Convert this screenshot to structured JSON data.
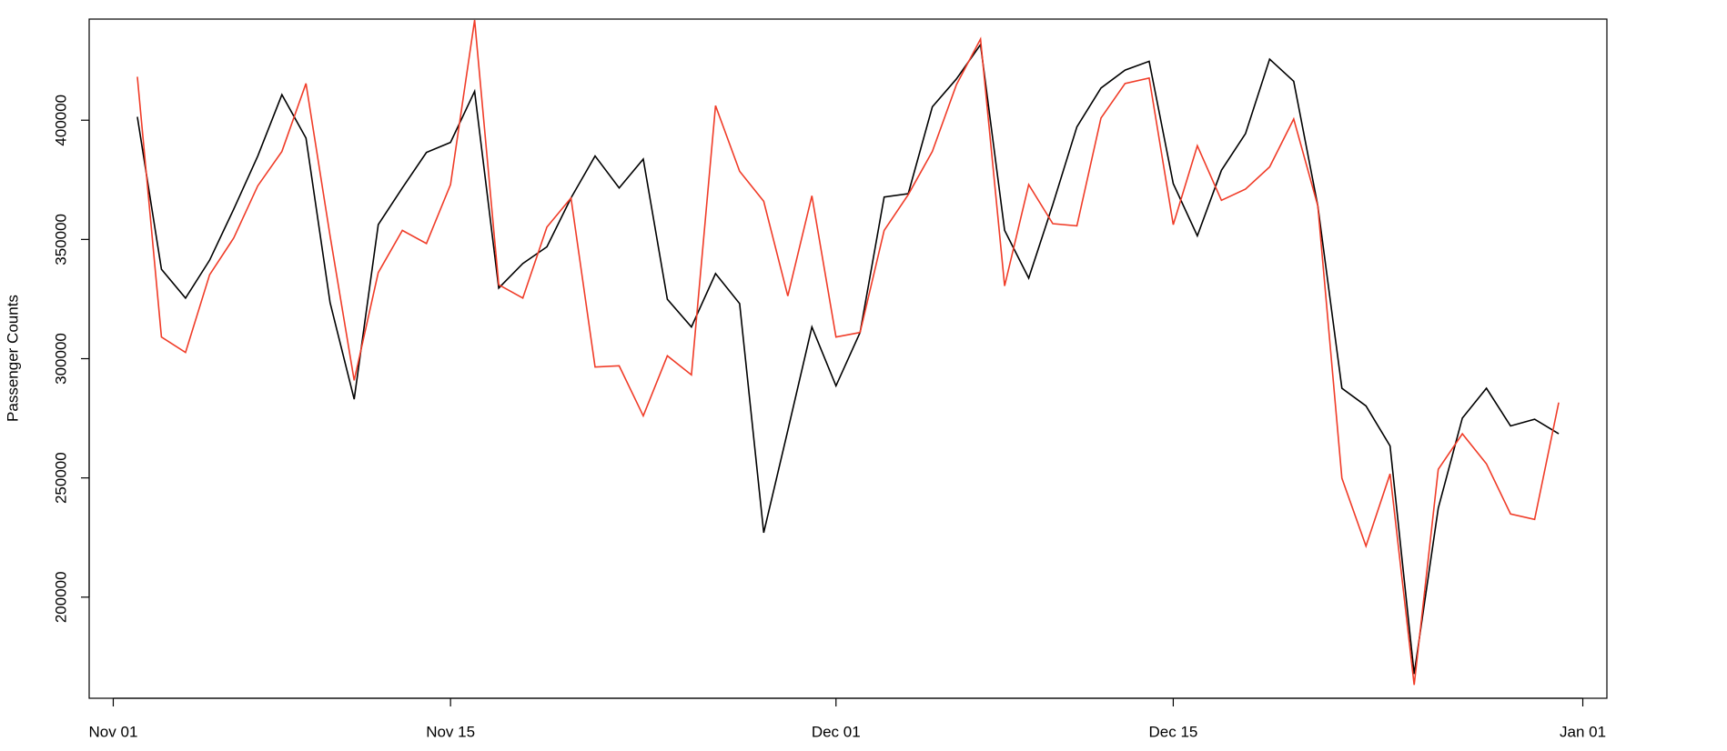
{
  "chart_data": {
    "type": "line",
    "y_label": "Passenger Counts",
    "x": [
      "Nov 02",
      "Nov 03",
      "Nov 04",
      "Nov 05",
      "Nov 06",
      "Nov 07",
      "Nov 08",
      "Nov 09",
      "Nov 10",
      "Nov 11",
      "Nov 12",
      "Nov 13",
      "Nov 14",
      "Nov 15",
      "Nov 16",
      "Nov 17",
      "Nov 18",
      "Nov 19",
      "Nov 20",
      "Nov 21",
      "Nov 22",
      "Nov 23",
      "Nov 24",
      "Nov 25",
      "Nov 26",
      "Nov 27",
      "Nov 28",
      "Nov 29",
      "Nov 30",
      "Dec 01",
      "Dec 02",
      "Dec 03",
      "Dec 04",
      "Dec 05",
      "Dec 06",
      "Dec 07",
      "Dec 08",
      "Dec 09",
      "Dec 10",
      "Dec 11",
      "Dec 12",
      "Dec 13",
      "Dec 14",
      "Dec 15",
      "Dec 16",
      "Dec 17",
      "Dec 18",
      "Dec 19",
      "Dec 20",
      "Dec 21",
      "Dec 22",
      "Dec 23",
      "Dec 24",
      "Dec 25",
      "Dec 26",
      "Dec 27",
      "Dec 28",
      "Dec 29",
      "Dec 30",
      "Dec 31"
    ],
    "series": [
      {
        "color": "#000000",
        "values": [
          401400,
          337500,
          325400,
          341300,
          362700,
          385000,
          410700,
          392500,
          323500,
          283000,
          356200,
          371600,
          386500,
          390700,
          412100,
          329600,
          339900,
          346900,
          367400,
          385000,
          371600,
          383700,
          324900,
          313300,
          335700,
          323100,
          227000,
          269900,
          313300,
          288600,
          311000,
          367800,
          369200,
          405600,
          417300,
          431700,
          353800,
          333800,
          364600,
          397200,
          413500,
          421000,
          424700,
          373400,
          351500,
          379000,
          394400,
          425600,
          416300,
          364100,
          287600,
          280200,
          263400,
          167800,
          237300,
          275100,
          287600,
          271800,
          274600,
          268500
        ]
      },
      {
        "color": "#f03c28",
        "values": [
          418200,
          309100,
          302600,
          335200,
          350600,
          372500,
          386900,
          415400,
          351500,
          290900,
          336100,
          353800,
          348300,
          373000,
          442000,
          331000,
          325400,
          355200,
          367400,
          296500,
          297000,
          276000,
          301200,
          293200,
          406100,
          378600,
          366000,
          326300,
          368300,
          309100,
          311000,
          353800,
          368800,
          386900,
          414900,
          434000,
          330500,
          373000,
          356600,
          355700,
          400900,
          415400,
          417700,
          356200,
          389300,
          366400,
          371100,
          380400,
          400500,
          364100,
          249900,
          221400,
          251700,
          163200,
          253600,
          268500,
          255900,
          234900,
          232600,
          281600
        ]
      }
    ],
    "xlim": [
      "Oct 31",
      "Jan 02"
    ],
    "xticks": [
      "Nov 01",
      "Nov 15",
      "Dec 01",
      "Dec 15",
      "Jan 01"
    ],
    "ylim": [
      157600,
      442400
    ],
    "yticks": [
      200000,
      250000,
      300000,
      350000,
      400000
    ]
  }
}
